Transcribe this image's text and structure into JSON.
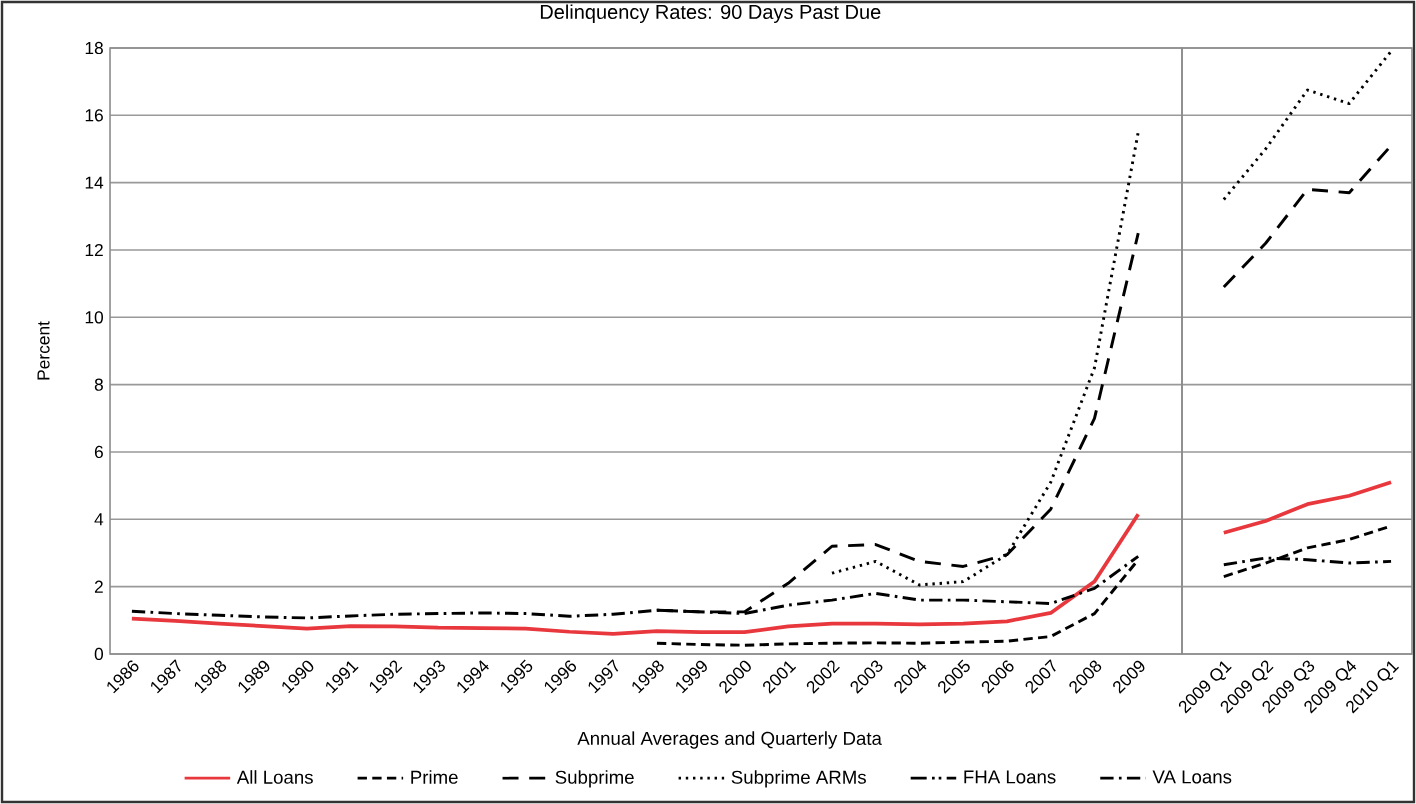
{
  "chart_data": [
    {
      "type": "line",
      "title": "Delinquency Rates: 90 Days Past Due",
      "xlabel": "Annual Averages and Quarterly Data",
      "ylabel": "Percent",
      "categories": [
        "1986",
        "1987",
        "1988",
        "1989",
        "1990",
        "1991",
        "1992",
        "1993",
        "1994",
        "1995",
        "1996",
        "1997",
        "1998",
        "1999",
        "2000",
        "2001",
        "2002",
        "2003",
        "2004",
        "2005",
        "2006",
        "2007",
        "2008",
        "2009"
      ],
      "series": [
        {
          "name": "All Loans",
          "color": "#e8383d",
          "line_style": "solid",
          "values": [
            1.05,
            0.98,
            0.9,
            0.83,
            0.75,
            0.83,
            0.82,
            0.78,
            0.77,
            0.75,
            0.66,
            0.6,
            0.68,
            0.65,
            0.65,
            0.82,
            0.9,
            0.9,
            0.88,
            0.9,
            0.97,
            1.22,
            2.15,
            4.15
          ]
        },
        {
          "name": "Prime",
          "color": "#000000",
          "line_style": "dashed",
          "values": [
            null,
            null,
            null,
            null,
            null,
            null,
            null,
            null,
            null,
            null,
            null,
            null,
            0.32,
            0.28,
            0.26,
            0.3,
            0.32,
            0.33,
            0.32,
            0.35,
            0.38,
            0.52,
            1.2,
            2.8
          ]
        },
        {
          "name": "Subprime",
          "color": "#000000",
          "line_style": "long dashed",
          "values": [
            null,
            null,
            null,
            null,
            null,
            null,
            null,
            null,
            null,
            null,
            null,
            null,
            1.3,
            1.25,
            1.25,
            2.1,
            3.2,
            3.25,
            2.75,
            2.6,
            2.95,
            4.3,
            7.0,
            12.5
          ]
        },
        {
          "name": "Subprime ARMs",
          "color": "#000000",
          "line_style": "dotted",
          "values": [
            null,
            null,
            null,
            null,
            null,
            null,
            null,
            null,
            null,
            null,
            null,
            null,
            null,
            null,
            null,
            null,
            2.4,
            2.75,
            2.05,
            2.15,
            2.95,
            5.1,
            8.5,
            15.5
          ]
        },
        {
          "name": "FHA Loans",
          "color": "#000000",
          "line_style": "dashdotdot",
          "values": [
            null,
            null,
            null,
            null,
            null,
            null,
            null,
            null,
            null,
            null,
            null,
            null,
            null,
            null,
            null,
            null,
            null,
            null,
            null,
            null,
            null,
            null,
            null,
            null
          ]
        },
        {
          "name": "VA Loans",
          "color": "#000000",
          "line_style": "dashdot",
          "values": [
            1.27,
            1.2,
            1.15,
            1.1,
            1.07,
            1.13,
            1.18,
            1.2,
            1.22,
            1.2,
            1.12,
            1.18,
            1.3,
            1.25,
            1.2,
            1.45,
            1.6,
            1.8,
            1.6,
            1.6,
            1.55,
            1.5,
            1.95,
            2.9
          ]
        }
      ],
      "ylim": [
        0,
        18
      ],
      "yticks": [
        0,
        2,
        4,
        6,
        8,
        10,
        12,
        14,
        16,
        18
      ],
      "grid": "y",
      "legend": "bottom"
    },
    {
      "type": "line",
      "categories": [
        "2009 Q1",
        "2009 Q2",
        "2009 Q3",
        "2009 Q4",
        "2010 Q1"
      ],
      "series": [
        {
          "color": "#e8383d",
          "line_style": "solid",
          "values": [
            3.6,
            3.95,
            4.45,
            4.7,
            5.1
          ]
        },
        {
          "color": "#000000",
          "line_style": "dashed",
          "values": [
            2.3,
            2.7,
            3.15,
            3.4,
            3.8
          ]
        },
        {
          "color": "#000000",
          "line_style": "long dashed",
          "values": [
            10.9,
            12.2,
            13.8,
            13.7,
            15.1
          ]
        },
        {
          "color": "#000000",
          "line_style": "dotted",
          "values": [
            13.5,
            15.0,
            16.75,
            16.35,
            17.9
          ]
        },
        {
          "color": "#000000",
          "line_style": "dashdot",
          "values": [
            2.65,
            2.85,
            2.8,
            2.7,
            2.75
          ]
        }
      ],
      "ylim": [
        0,
        18
      ],
      "yticks": [
        0,
        2,
        4,
        6,
        8,
        10,
        12,
        14,
        16,
        18
      ],
      "grid": "y",
      "tick_labels": "x"
    }
  ]
}
